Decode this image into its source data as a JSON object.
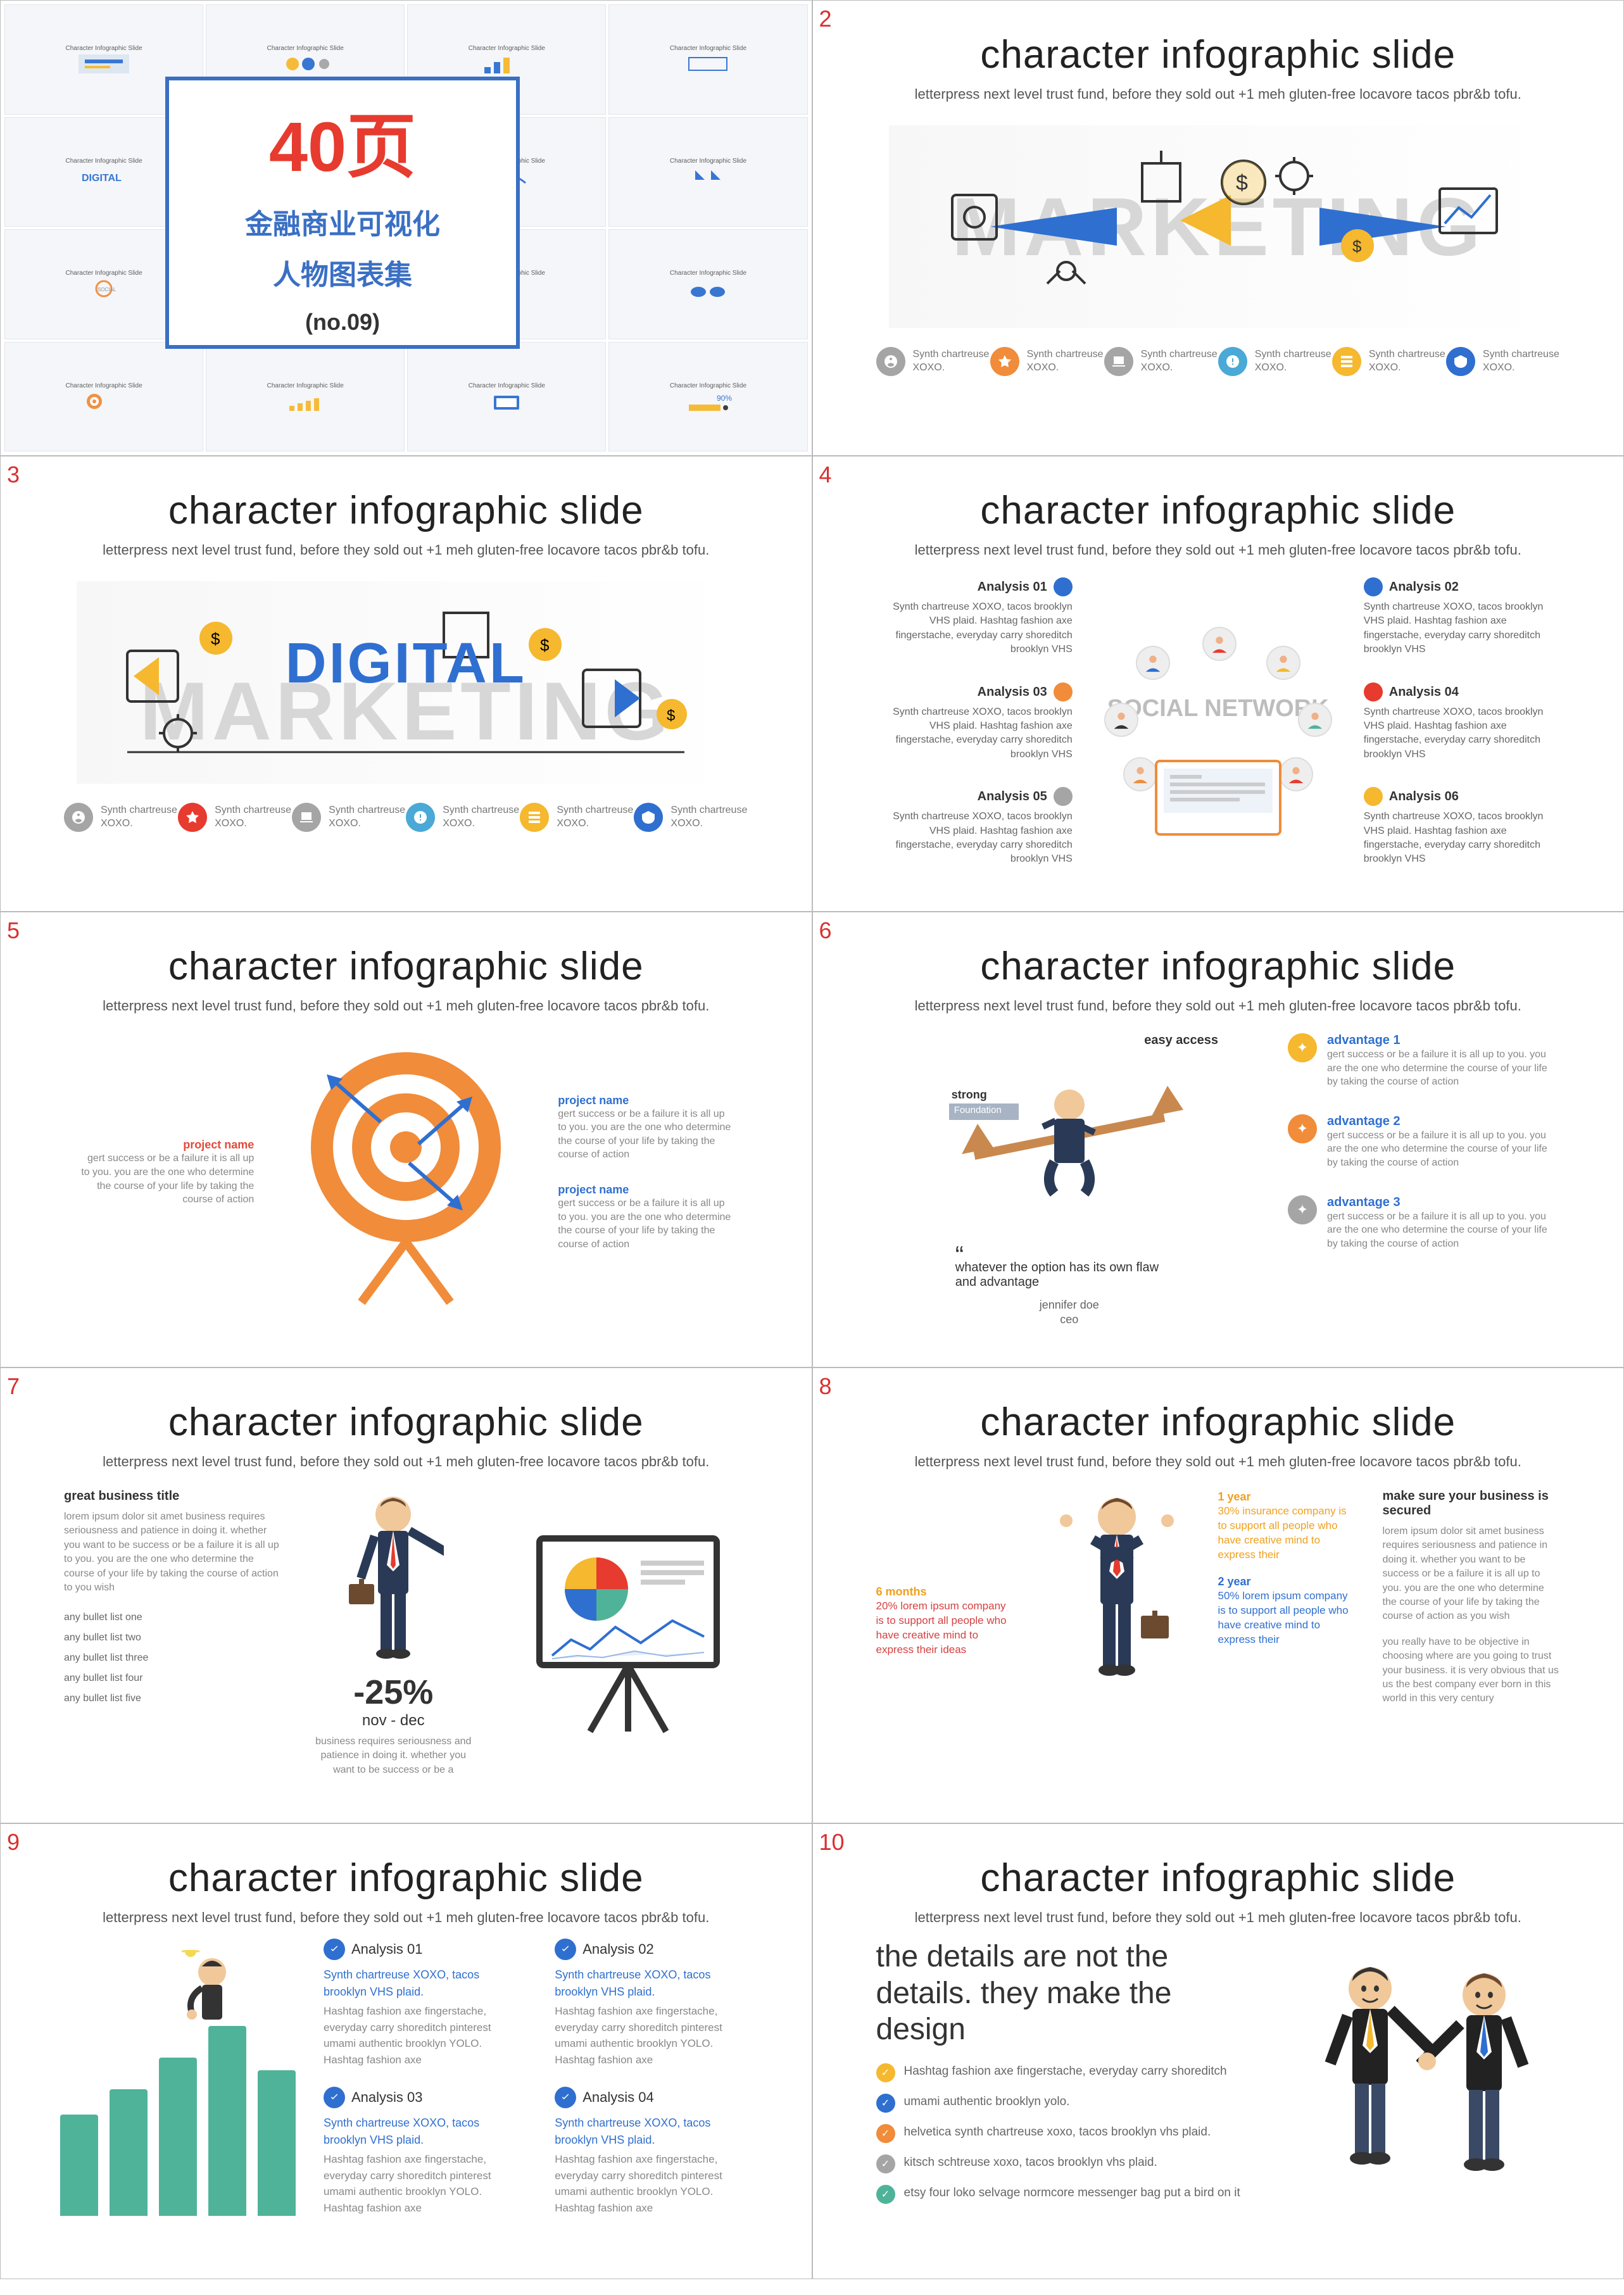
{
  "colors": {
    "red": "#e63b2e",
    "blue": "#2f6fd0",
    "yellow": "#f5b82e",
    "orange": "#f08c3a",
    "grey": "#a5a5a5",
    "teal": "#4fb39a",
    "dark": "#333",
    "cyan": "#4aa9d6"
  },
  "common": {
    "title": "character infographic slide",
    "subtitle": "letterpress next level trust fund, before they sold out +1 meh gluten-free locavore tacos pbr&b tofu.",
    "icon_label": "Synth chartreuse XOXO.",
    "project_desc": "gert success or be a failure it is all up to you. you are the one who determine the course of your life by taking the course of action"
  },
  "s1": {
    "line1": "40页",
    "line2": "金融商业可视化",
    "line3": "人物图表集",
    "line4": "(no.09)",
    "thumb_title": "Character Infographic Slide"
  },
  "s2": {
    "bg_word": "MARKETING",
    "icons": [
      {
        "c": "#a5a5a5"
      },
      {
        "c": "#f08c3a"
      },
      {
        "c": "#a5a5a5"
      },
      {
        "c": "#4aa9d6"
      },
      {
        "c": "#f5b82e"
      },
      {
        "c": "#2f6fd0"
      }
    ]
  },
  "s3": {
    "fg_word": "DIGITAL",
    "bg_word": "MARKETING",
    "icons": [
      {
        "c": "#a5a5a5"
      },
      {
        "c": "#e63b2e"
      },
      {
        "c": "#a5a5a5"
      },
      {
        "c": "#4aa9d6"
      },
      {
        "c": "#f5b82e"
      },
      {
        "c": "#2f6fd0"
      }
    ]
  },
  "s4": {
    "center": "SOCIAL NETWORK",
    "left": [
      {
        "h": "Analysis 01",
        "c": "#2f6fd0"
      },
      {
        "h": "Analysis 03",
        "c": "#f08c3a"
      },
      {
        "h": "Analysis 05",
        "c": "#a5a5a5"
      }
    ],
    "right": [
      {
        "h": "Analysis 02",
        "c": "#2f6fd0"
      },
      {
        "h": "Analysis 04",
        "c": "#e63b2e"
      },
      {
        "h": "Analysis 06",
        "c": "#f5b82e"
      }
    ],
    "desc": "Synth chartreuse XOXO, tacos brooklyn VHS plaid. Hashtag fashion axe fingerstache, everyday carry shoreditch brooklyn VHS"
  },
  "s5": {
    "left": {
      "h": "project name"
    },
    "right": [
      {
        "h": "project name"
      },
      {
        "h": "project name"
      }
    ]
  },
  "s6": {
    "easy": "easy access",
    "strong": "strong",
    "foundation": "Foundation",
    "quote": "whatever the option has its own flaw and advantage",
    "sig1": "jennifer doe",
    "sig2": "ceo",
    "adv": [
      {
        "h": "advantage 1",
        "c": "#f5b82e"
      },
      {
        "h": "advantage 2",
        "c": "#f08c3a"
      },
      {
        "h": "advantage 3",
        "c": "#a5a5a5"
      }
    ]
  },
  "s7": {
    "h": "great business title",
    "para": "lorem ipsum dolor sit amet business requires seriousness and patience in doing it. whether you want to be success or be a failure it is all up to you. you are the one who determine the course of your life by taking the course of action to you wish",
    "bullets": [
      "any bullet list one",
      "any bullet list two",
      "any bullet list three",
      "any bullet list four",
      "any bullet list five"
    ],
    "pct": "-25%",
    "pctsub": "nov - dec",
    "pctdesc": "business requires seriousness and patience in doing it. whether you want to be success or be a"
  },
  "s8": {
    "col1": {
      "h1": "6 months",
      "t1": "20% lorem ipsum company is to support all people who have creative mind to express their ideas"
    },
    "col2": {
      "h1": "1 year",
      "t1": "30% insurance company is to support all people who have creative mind to express their",
      "h2": "2 year",
      "t2": "50% lorem ipsum company is to support all people who have creative mind to express their"
    },
    "right": {
      "h": "make sure your business is secured",
      "p1": "lorem ipsum dolor sit amet business requires seriousness and patience in doing it. whether you want to be success or be a failure it is all up to you. you are the one who determine the course of your life by taking the course of action as you wish",
      "p2": "you really have to be objective in choosing where are you going to trust your business. it is very obvious that us us the best company ever born in this world in this very century"
    }
  },
  "s9": {
    "bars": [
      160,
      200,
      250,
      300,
      230
    ],
    "bar_color": "#4fb39a",
    "items": [
      {
        "h": "Analysis 01"
      },
      {
        "h": "Analysis 02"
      },
      {
        "h": "Analysis 03"
      },
      {
        "h": "Analysis 04"
      }
    ],
    "blue": "Synth chartreuse XOXO, tacos brooklyn VHS plaid.",
    "grey": "Hashtag fashion axe fingerstache, everyday carry shoreditch pinterest umami authentic brooklyn YOLO. Hashtag fashion axe"
  },
  "s10": {
    "big": "the details are not the details. they make the design",
    "items": [
      {
        "c": "#f5b82e",
        "t": "Hashtag fashion axe fingerstache, everyday carry shoreditch"
      },
      {
        "c": "#2f6fd0",
        "t": "umami authentic brooklyn yolo."
      },
      {
        "c": "#f08c3a",
        "t": "helvetica synth chartreuse xoxo, tacos brooklyn vhs plaid."
      },
      {
        "c": "#a5a5a5",
        "t": "kitsch schtreuse xoxo, tacos brooklyn vhs plaid."
      },
      {
        "c": "#4fb39a",
        "t": "etsy four loko selvage normcore messenger bag put a bird on it"
      }
    ]
  }
}
